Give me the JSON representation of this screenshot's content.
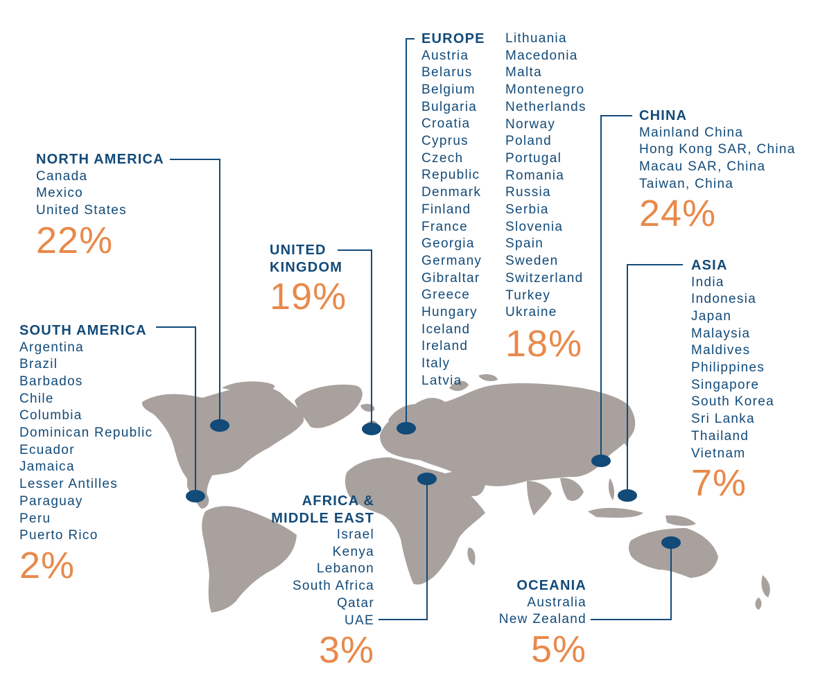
{
  "colors": {
    "land": "#a8a19d",
    "accent_blue": "#124a78",
    "accent_orange": "#e8894a",
    "background": "#ffffff"
  },
  "regions": {
    "north_america": {
      "title": "NORTH AMERICA",
      "items": [
        "Canada",
        "Mexico",
        "United States"
      ],
      "percent": "22%"
    },
    "united_kingdom": {
      "title_lines": [
        "UNITED",
        "KINGDOM"
      ],
      "percent": "19%"
    },
    "south_america": {
      "title": "SOUTH AMERICA",
      "items": [
        "Argentina",
        "Brazil",
        "Barbados",
        "Chile",
        "Columbia",
        "Dominican Republic",
        "Ecuador",
        "Jamaica",
        "Lesser Antilles",
        "Paraguay",
        "Peru",
        "Puerto Rico"
      ],
      "percent": "2%"
    },
    "europe": {
      "title": "EUROPE",
      "items_col1": [
        "Austria",
        "Belarus",
        "Belgium",
        "Bulgaria",
        "Croatia",
        "Cyprus",
        "Czech",
        "Republic",
        "Denmark",
        "Finland",
        "France",
        "Georgia",
        "Germany",
        "Gibraltar",
        "Greece",
        "Hungary",
        "Iceland",
        "Ireland",
        "Italy",
        "Latvia"
      ],
      "items_col2": [
        "Lithuania",
        "Macedonia",
        "Malta",
        "Montenegro",
        "Netherlands",
        "Norway",
        "Poland",
        "Portugal",
        "Romania",
        "Russia",
        "Serbia",
        "Slovenia",
        "Spain",
        "Sweden",
        "Switzerland",
        "Turkey",
        "Ukraine"
      ],
      "percent": "18%"
    },
    "china": {
      "title": "CHINA",
      "items": [
        "Mainland China",
        "Hong Kong SAR, China",
        "Macau SAR, China",
        "Taiwan, China"
      ],
      "percent": "24%"
    },
    "asia": {
      "title": "ASIA",
      "items": [
        "India",
        "Indonesia",
        "Japan",
        "Malaysia",
        "Maldives",
        "Philippines",
        "Singapore",
        "South Korea",
        "Sri Lanka",
        "Thailand",
        "Vietnam"
      ],
      "percent": "7%"
    },
    "africa_middle_east": {
      "title_lines": [
        "AFRICA &",
        "MIDDLE EAST"
      ],
      "items": [
        "Israel",
        "Kenya",
        "Lebanon",
        "South Africa",
        "Qatar",
        "UAE"
      ],
      "percent": "3%"
    },
    "oceania": {
      "title": "OCEANIA",
      "items": [
        "Australia",
        "New Zealand"
      ],
      "percent": "5%"
    }
  }
}
